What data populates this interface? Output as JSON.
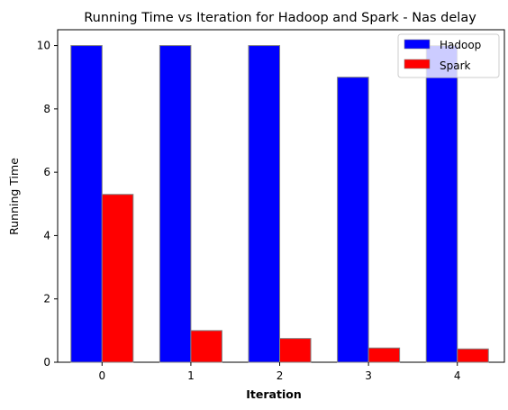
{
  "chart_data": {
    "type": "bar",
    "title": "Running Time vs Iteration for Hadoop and Spark - Nas delay",
    "xlabel": "Iteration",
    "ylabel": "Running Time",
    "categories": [
      "0",
      "1",
      "2",
      "3",
      "4"
    ],
    "series": [
      {
        "name": "Hadoop",
        "color": "#0000ff",
        "values": [
          10,
          10,
          10,
          9,
          10
        ]
      },
      {
        "name": "Spark",
        "color": "#ff0000",
        "values": [
          5.3,
          1.0,
          0.75,
          0.45,
          0.42
        ]
      }
    ],
    "ylim": [
      0,
      10.5
    ],
    "yticks": [
      0,
      2,
      4,
      6,
      8,
      10
    ],
    "grid": false,
    "legend": "top-right"
  }
}
